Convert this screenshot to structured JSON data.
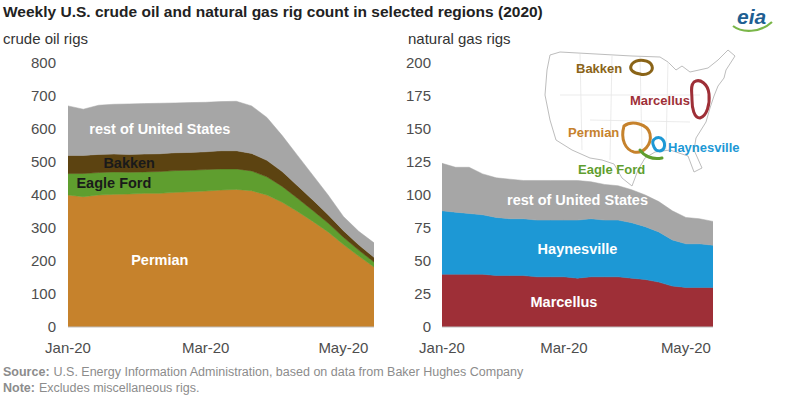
{
  "title": "Weekly U.S. crude oil and natural gas rig count in selected regions (2020)",
  "logo": "eia",
  "footer": {
    "source_label": "Source:",
    "source": "U.S. Energy Information Administration, based on data from Baker Hughes Company",
    "note_label": "Note:",
    "note": "Excludes miscellaneous rigs."
  },
  "map": {
    "labels": [
      {
        "text": "Bakken",
        "color": "#8a6418"
      },
      {
        "text": "Marcellus",
        "color": "#9e2f37"
      },
      {
        "text": "Permian",
        "color": "#c6822c"
      },
      {
        "text": "Haynesville",
        "color": "#1d98d5"
      },
      {
        "text": "Eagle Ford",
        "color": "#5f9e2f"
      }
    ]
  },
  "chart_data": [
    {
      "type": "area",
      "stacked": true,
      "grid": false,
      "ylabel": "crude oil rigs",
      "categories": [
        "Jan-20",
        null,
        null,
        null,
        null,
        null,
        null,
        null,
        null,
        "Mar-20",
        null,
        null,
        null,
        null,
        null,
        null,
        null,
        null,
        "May-20",
        null,
        null
      ],
      "ylim": [
        0,
        800
      ],
      "yticks": [
        0,
        100,
        200,
        300,
        400,
        500,
        600,
        700,
        800
      ],
      "series": [
        {
          "name": "Permian",
          "color": "#c6822c",
          "values": [
            400,
            395,
            400,
            402,
            403,
            405,
            405,
            408,
            410,
            412,
            415,
            417,
            413,
            400,
            378,
            350,
            320,
            288,
            250,
            215,
            182
          ]
        },
        {
          "name": "Eagle Ford",
          "color": "#5f9e2f",
          "values": [
            65,
            70,
            68,
            68,
            66,
            65,
            66,
            66,
            65,
            65,
            64,
            62,
            60,
            55,
            48,
            40,
            33,
            27,
            22,
            18,
            15
          ]
        },
        {
          "name": "Bakken",
          "color": "#5c4311",
          "values": [
            55,
            55,
            55,
            54,
            54,
            54,
            54,
            54,
            54,
            54,
            55,
            55,
            53,
            50,
            45,
            38,
            32,
            25,
            20,
            16,
            14
          ]
        },
        {
          "name": "rest of United States",
          "color": "#a6a6a6",
          "values": [
            150,
            140,
            149,
            151,
            153,
            153,
            153,
            151,
            151,
            150,
            149,
            150,
            144,
            130,
            109,
            92,
            75,
            60,
            43,
            41,
            44
          ]
        }
      ]
    },
    {
      "type": "area",
      "stacked": true,
      "grid": false,
      "ylabel": "natural gas rigs",
      "categories": [
        "Jan-20",
        null,
        null,
        null,
        null,
        null,
        null,
        null,
        null,
        "Mar-20",
        null,
        null,
        null,
        null,
        null,
        null,
        null,
        null,
        "May-20",
        null,
        null
      ],
      "ylim": [
        0,
        200
      ],
      "yticks": [
        0,
        25,
        50,
        75,
        100,
        125,
        150,
        175,
        200
      ],
      "series": [
        {
          "name": "Marcellus",
          "color": "#9e2f37",
          "values": [
            40,
            40,
            40,
            40,
            39,
            39,
            39,
            38,
            38,
            38,
            37,
            38,
            38,
            38,
            37,
            36,
            34,
            31,
            30,
            30,
            30
          ]
        },
        {
          "name": "Haynesville",
          "color": "#1d98d5",
          "values": [
            48,
            47,
            46,
            45,
            44,
            43,
            43,
            43,
            43,
            43,
            44,
            44,
            43,
            43,
            42,
            40,
            38,
            35,
            33,
            33,
            32
          ]
        },
        {
          "name": "rest of United States",
          "color": "#a6a6a6",
          "values": [
            36,
            34,
            35,
            31,
            30,
            30,
            29,
            30,
            30,
            30,
            30,
            28,
            27,
            26,
            25,
            24,
            23,
            22,
            20,
            19,
            18
          ]
        }
      ]
    }
  ]
}
